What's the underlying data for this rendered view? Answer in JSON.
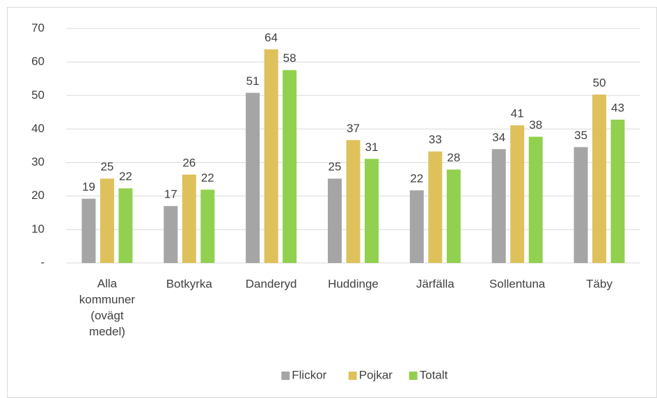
{
  "chart_data": {
    "type": "bar",
    "categories": [
      "Alla kommuner (ovägt medel)",
      "Botkyrka",
      "Danderyd",
      "Huddinge",
      "Järfälla",
      "Sollentuna",
      "Täby"
    ],
    "series": [
      {
        "name": "Flickor",
        "color": "#a5a5a5",
        "values": [
          19.2,
          17.0,
          50.8,
          25.2,
          21.7,
          34.0,
          34.6
        ],
        "value_labels": [
          "19",
          "17",
          "51",
          "25",
          "22",
          "34",
          "35"
        ]
      },
      {
        "name": "Pojkar",
        "color": "#dfc15c",
        "values": [
          25.2,
          26.4,
          63.8,
          36.7,
          33.3,
          41.1,
          50.3
        ],
        "value_labels": [
          "25",
          "26",
          "64",
          "37",
          "33",
          "41",
          "50"
        ]
      },
      {
        "name": "Totalt",
        "color": "#92d050",
        "values": [
          22.3,
          21.9,
          57.6,
          31.1,
          27.9,
          37.7,
          42.8
        ],
        "value_labels": [
          "22",
          "22",
          "58",
          "31",
          "28",
          "38",
          "43"
        ]
      }
    ],
    "ylim": [
      0,
      70
    ],
    "yticks": [
      {
        "value": 0,
        "label": "-"
      },
      10,
      20,
      30,
      40,
      50,
      60,
      70
    ],
    "grid": true,
    "legend": "bottom"
  }
}
